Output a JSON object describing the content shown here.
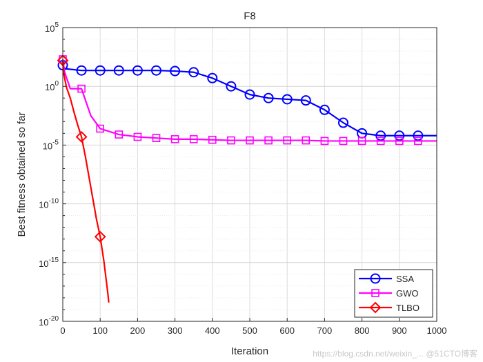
{
  "chart_data": {
    "type": "line",
    "title": "F8",
    "xlabel": "Iteration",
    "ylabel": "Best fitness obtained so far",
    "xlim": [
      0,
      1000
    ],
    "yscale": "log",
    "ylim_exponents": [
      -20,
      5
    ],
    "x_ticks": [
      "0",
      "100",
      "200",
      "300",
      "400",
      "500",
      "600",
      "700",
      "800",
      "900",
      "1000"
    ],
    "y_ticks": [
      {
        "base": "10",
        "exp": "5"
      },
      {
        "base": "10",
        "exp": "0"
      },
      {
        "base": "10",
        "exp": "-5"
      },
      {
        "base": "10",
        "exp": "-10"
      },
      {
        "base": "10",
        "exp": "-15"
      },
      {
        "base": "10",
        "exp": "-20"
      }
    ],
    "grid": true,
    "legend_position": "bottom-right",
    "series": [
      {
        "name": "SSA",
        "color": "#0000ff",
        "marker": "circle",
        "x": [
          0,
          5,
          50,
          100,
          150,
          200,
          250,
          300,
          350,
          400,
          450,
          500,
          550,
          600,
          650,
          700,
          750,
          800,
          850,
          900,
          950,
          1000
        ],
        "log10_y": [
          1.8,
          1.5,
          1.35,
          1.35,
          1.35,
          1.35,
          1.35,
          1.3,
          1.2,
          0.7,
          0.0,
          -0.7,
          -1.0,
          -1.1,
          -1.2,
          -2.0,
          -3.1,
          -4.0,
          -4.2,
          -4.2,
          -4.2,
          -4.2
        ]
      },
      {
        "name": "GWO",
        "color": "#ff00ff",
        "marker": "square",
        "x": [
          0,
          5,
          20,
          50,
          75,
          100,
          150,
          200,
          250,
          300,
          350,
          400,
          450,
          500,
          550,
          600,
          650,
          700,
          750,
          800,
          850,
          900,
          950,
          1000
        ],
        "log10_y": [
          2.3,
          1.2,
          -0.2,
          -0.2,
          -2.5,
          -3.6,
          -4.1,
          -4.3,
          -4.4,
          -4.5,
          -4.5,
          -4.55,
          -4.6,
          -4.6,
          -4.6,
          -4.6,
          -4.6,
          -4.65,
          -4.65,
          -4.65,
          -4.65,
          -4.65,
          -4.65,
          -4.65
        ]
      },
      {
        "name": "TLBO",
        "color": "#ff0000",
        "marker": "diamond",
        "x": [
          0,
          3,
          10,
          20,
          30,
          40,
          50,
          60,
          70,
          80,
          90,
          100,
          110,
          115,
          120,
          123
        ],
        "log10_y": [
          2.2,
          1.0,
          -0.1,
          -1.0,
          -2.2,
          -3.3,
          -4.3,
          -5.9,
          -7.7,
          -9.5,
          -11.3,
          -12.8,
          -14.9,
          -16.2,
          -17.5,
          -18.4
        ],
        "marker_x": [
          0,
          50,
          100
        ]
      }
    ]
  },
  "watermark": "https://blog.csdn.net/weixin_...  @51CTO博客"
}
